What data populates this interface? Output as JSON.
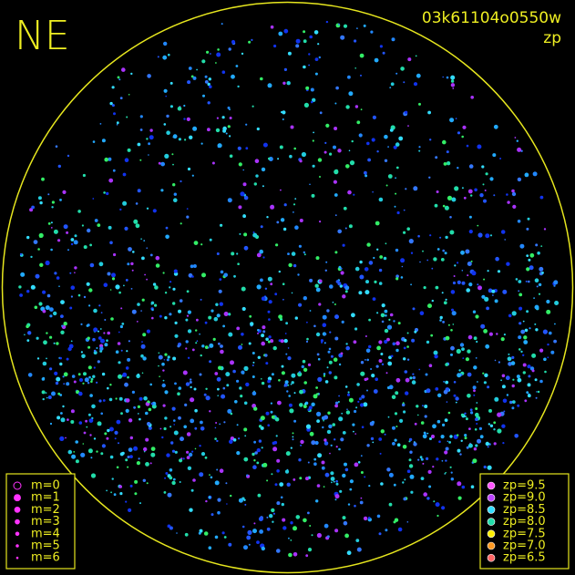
{
  "header": {
    "title": "NE",
    "id": "03k61104o0550w",
    "subtitle": "zp"
  },
  "magnitude_legend": {
    "items": [
      "m=0",
      "m=1",
      "m=2",
      "m=3",
      "m=4",
      "m=5",
      "m=6"
    ],
    "color": "#ff33ff"
  },
  "zp_legend": {
    "items": [
      {
        "label": "zp=9.5",
        "color": "#ff55ff"
      },
      {
        "label": "zp=9.0",
        "color": "#bb44ff"
      },
      {
        "label": "zp=8.5",
        "color": "#33ddff"
      },
      {
        "label": "zp=8.0",
        "color": "#22ddaa"
      },
      {
        "label": "zp=7.5",
        "color": "#ffee00"
      },
      {
        "label": "zp=7.0",
        "color": "#ff9922"
      },
      {
        "label": "zp=6.5",
        "color": "#ff6666"
      }
    ]
  }
}
